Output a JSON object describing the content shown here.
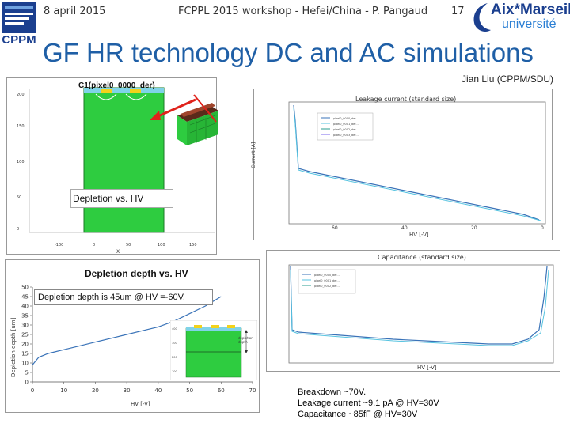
{
  "header": {
    "date": "8 april 2015",
    "workshop": "FCPPL 2015 workshop - Hefei/China - P. Pangaud",
    "page_number": "17",
    "logo_left": "CPPM",
    "logo_right_top": "Aix*Marseille",
    "logo_right_bottom": "université"
  },
  "title": "GF HR technology DC and AC simulations",
  "author": "Jian Liu (CPPM/SDU)",
  "panels": {
    "sim": {
      "label": "C1(pixel0_0000_der)",
      "annotation": "Depletion vs. HV"
    },
    "leakage": {
      "title": "Leakage current (standard size)",
      "ylabel": "Current [A]",
      "xlabel": "HV [-V]",
      "xticks": [
        "60",
        "40",
        "20",
        "0"
      ]
    },
    "capacitance": {
      "title": "Capacitance (standard size)",
      "xlabel": "HV [-V]"
    },
    "depletion": {
      "title": "Depletion depth vs. HV",
      "annotation": "Depletion depth is 45um @ HV =-60V.",
      "ylabel": "Depletion depth [um]",
      "xlabel": "HV [-V]",
      "xticks": [
        "0",
        "10",
        "20",
        "30",
        "40",
        "50",
        "60",
        "70"
      ],
      "yticks": [
        "0",
        "5",
        "10",
        "15",
        "20",
        "25",
        "30",
        "35",
        "40",
        "45",
        "50"
      ],
      "inset_label": "depletion depth"
    }
  },
  "notes": [
    "Breakdown ~70V.",
    "Leakage current ~9.1 pA @ HV=30V",
    "Capacitance ~85fF @ HV=30V"
  ],
  "chart_data": {
    "type": "line",
    "title": "Depletion depth vs. HV",
    "xlabel": "HV [-V]",
    "ylabel": "Depletion depth [um]",
    "xlim": [
      0,
      70
    ],
    "ylim": [
      0,
      50
    ],
    "x": [
      0,
      2,
      5,
      10,
      15,
      20,
      25,
      30,
      35,
      40,
      45,
      50,
      55,
      60
    ],
    "series": [
      {
        "values": [
          9,
          13,
          15,
          17,
          19,
          21,
          23,
          25,
          27,
          29,
          32,
          36,
          40,
          45
        ]
      }
    ],
    "grid": false
  },
  "colors": {
    "title": "#1f5fa6",
    "sim_green": "#2ecc40",
    "series": "#3a73b8",
    "arrow": "#e0221b"
  }
}
